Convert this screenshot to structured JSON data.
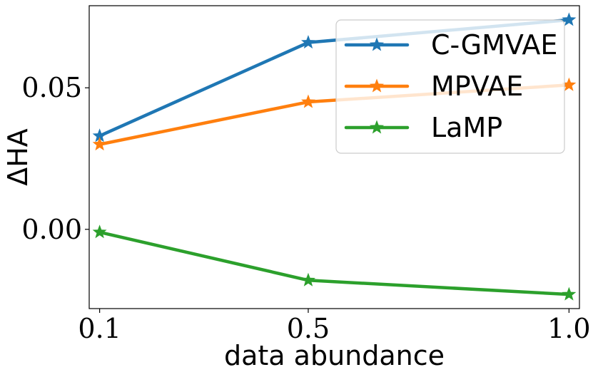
{
  "chart_data": {
    "type": "line",
    "title": "",
    "xlabel": "data abundance",
    "ylabel": "ΔHA",
    "x": [
      0.1,
      0.5,
      1.0
    ],
    "x_tick_labels": [
      "0.1",
      "0.5",
      "1.0"
    ],
    "y_ticks": [
      0.0,
      0.05
    ],
    "y_tick_labels": [
      "0.00",
      "0.05"
    ],
    "xlim": [
      0.08,
      1.02
    ],
    "ylim": [
      -0.028,
      0.079
    ],
    "grid": false,
    "legend_position": "upper-right",
    "series": [
      {
        "name": "C-GMVAE",
        "color": "#1f77b4",
        "values": [
          0.033,
          0.066,
          0.074
        ]
      },
      {
        "name": "MPVAE",
        "color": "#ff7f0e",
        "values": [
          0.03,
          0.045,
          0.051
        ]
      },
      {
        "name": "LaMP",
        "color": "#2ca02c",
        "values": [
          -0.001,
          -0.018,
          -0.023
        ]
      }
    ]
  }
}
